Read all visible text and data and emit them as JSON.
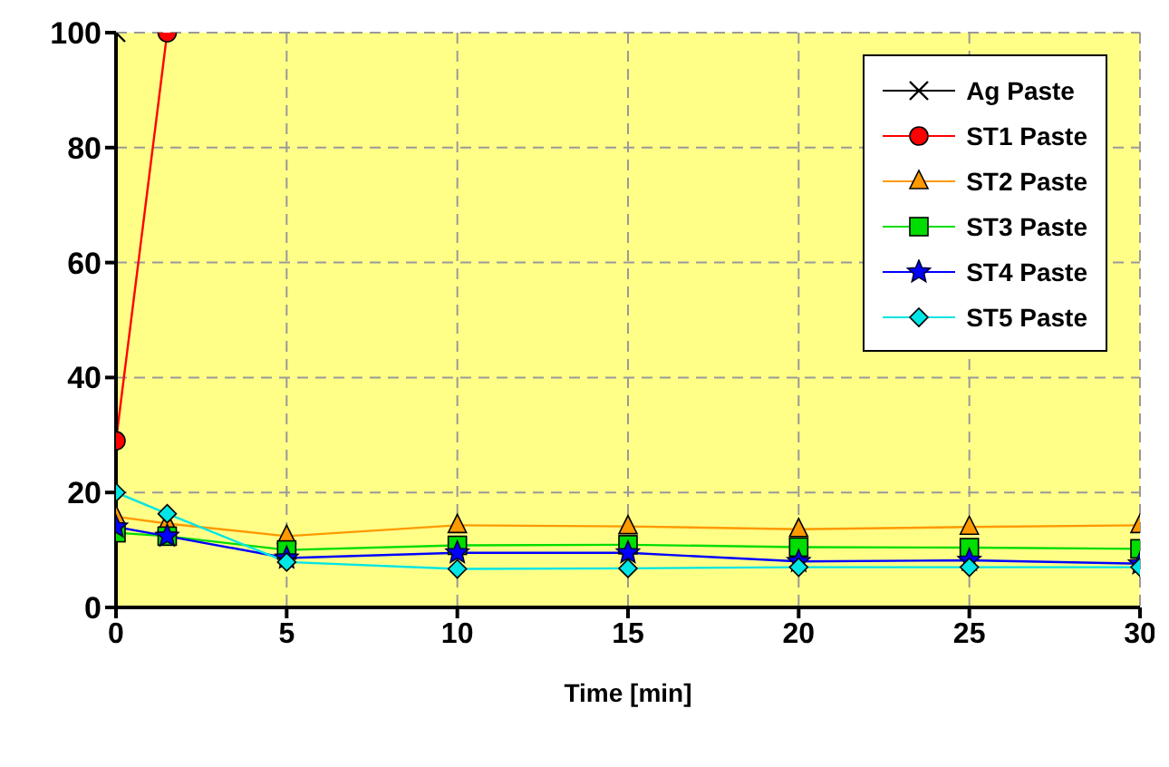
{
  "chart_data": {
    "type": "line",
    "xlabel": "Time [min]",
    "xlim": [
      0,
      30
    ],
    "xticks": [
      0,
      5,
      10,
      15,
      20,
      25,
      30
    ],
    "ylim": [
      0,
      100
    ],
    "yticks": [
      0,
      20,
      40,
      60,
      80,
      100
    ],
    "grid": true,
    "legend": "top right",
    "line_style": "solid",
    "series": [
      {
        "name": "Ag  Paste",
        "color": "#000000",
        "marker": "cross",
        "x": [
          0
        ],
        "values": [
          100
        ]
      },
      {
        "name": "ST1 Paste",
        "color": "#ff0000",
        "marker": "circle",
        "x": [
          0,
          1.5
        ],
        "values": [
          29,
          100
        ]
      },
      {
        "name": "ST2 Paste",
        "color": "#ff9900",
        "marker": "triangle",
        "x": [
          0,
          1.5,
          5,
          10,
          15,
          20,
          25,
          30
        ],
        "values": [
          15.8,
          14.6,
          12.4,
          14.3,
          14.1,
          13.6,
          14,
          14.3
        ]
      },
      {
        "name": "ST3 Paste",
        "color": "#00dd00",
        "marker": "square",
        "x": [
          0,
          1.5,
          5,
          10,
          15,
          20,
          25,
          30
        ],
        "values": [
          13,
          12.4,
          10,
          10.8,
          10.9,
          10.5,
          10.4,
          10.2
        ]
      },
      {
        "name": "ST4 Paste",
        "color": "#0000ff",
        "marker": "star",
        "x": [
          0,
          1.5,
          5,
          10,
          15,
          20,
          25,
          30
        ],
        "values": [
          14,
          12.4,
          8.6,
          9.5,
          9.5,
          8,
          8.2,
          7.6
        ]
      },
      {
        "name": "ST5 Paste",
        "color": "#00e5e5",
        "marker": "diamond",
        "x": [
          0,
          1.5,
          5,
          10,
          15,
          20,
          25,
          30
        ],
        "values": [
          20,
          16.3,
          7.9,
          6.7,
          6.8,
          7,
          7,
          7
        ]
      }
    ]
  }
}
